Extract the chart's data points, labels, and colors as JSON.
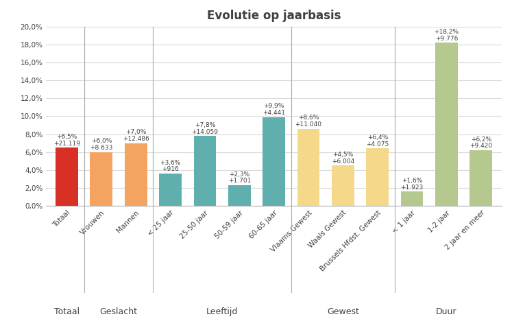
{
  "title": "Evolutie op jaarbasis",
  "bars": [
    {
      "label": "Totaal",
      "pct": 6.5,
      "abs": "+21.119",
      "pct_str": "+6,5%",
      "color": "#d93025",
      "group": "Totaal"
    },
    {
      "label": "Vrouwen",
      "pct": 6.0,
      "abs": "+8.633",
      "pct_str": "+6,0%",
      "color": "#f4a460",
      "group": "Geslacht"
    },
    {
      "label": "Mannen",
      "pct": 7.0,
      "abs": "+12.486",
      "pct_str": "+7,0%",
      "color": "#f4a460",
      "group": "Geslacht"
    },
    {
      "label": "< 25 jaar",
      "pct": 3.6,
      "abs": "+916",
      "pct_str": "+3,6%",
      "color": "#5fafaf",
      "group": "Leeftijd"
    },
    {
      "label": "25-50 jaar",
      "pct": 7.8,
      "abs": "+14.059",
      "pct_str": "+7,8%",
      "color": "#5fafaf",
      "group": "Leeftijd"
    },
    {
      "label": "50-59 jaar",
      "pct": 2.3,
      "abs": "+1.701",
      "pct_str": "+2,3%",
      "color": "#5fafaf",
      "group": "Leeftijd"
    },
    {
      "label": "60-65 jaar",
      "pct": 9.9,
      "abs": "+4.441",
      "pct_str": "+9,9%",
      "color": "#5fafaf",
      "group": "Leeftijd"
    },
    {
      "label": "Vlaams Gewest",
      "pct": 8.6,
      "abs": "+11.040",
      "pct_str": "+8,6%",
      "color": "#f5d98b",
      "group": "Gewest"
    },
    {
      "label": "Waals Gewest",
      "pct": 4.5,
      "abs": "+6.004",
      "pct_str": "+4,5%",
      "color": "#f5d98b",
      "group": "Gewest"
    },
    {
      "label": "Brussels Hfdst. Gewest",
      "pct": 6.4,
      "abs": "+4.075",
      "pct_str": "+6,4%",
      "color": "#f5d98b",
      "group": "Gewest"
    },
    {
      "label": "< 1 jaar",
      "pct": 1.6,
      "abs": "+1.923",
      "pct_str": "+1,6%",
      "color": "#b5c98e",
      "group": "Duur"
    },
    {
      "label": "1-2 jaar",
      "pct": 18.2,
      "abs": "+9.776",
      "pct_str": "+18,2%",
      "color": "#b5c98e",
      "group": "Duur"
    },
    {
      "label": "2 jaar en meer",
      "pct": 6.2,
      "abs": "+9.420",
      "pct_str": "+6,2%",
      "color": "#b5c98e",
      "group": "Duur"
    }
  ],
  "groups": [
    {
      "name": "Totaal",
      "start": 0,
      "end": 0
    },
    {
      "name": "Geslacht",
      "start": 1,
      "end": 2
    },
    {
      "name": "Leeftijd",
      "start": 3,
      "end": 6
    },
    {
      "name": "Gewest",
      "start": 7,
      "end": 9
    },
    {
      "name": "Duur",
      "start": 10,
      "end": 12
    }
  ],
  "ylim": [
    0,
    20
  ],
  "yticks": [
    0,
    2,
    4,
    6,
    8,
    10,
    12,
    14,
    16,
    18,
    20
  ],
  "ytick_labels": [
    "0,0%",
    "2,0%",
    "4,0%",
    "6,0%",
    "8,0%",
    "10,0%",
    "12,0%",
    "14,0%",
    "16,0%",
    "18,0%",
    "20,0%"
  ],
  "background_color": "#ffffff",
  "grid_color": "#d9d9d9",
  "text_color": "#404040",
  "separator_color": "#b0b0b0"
}
